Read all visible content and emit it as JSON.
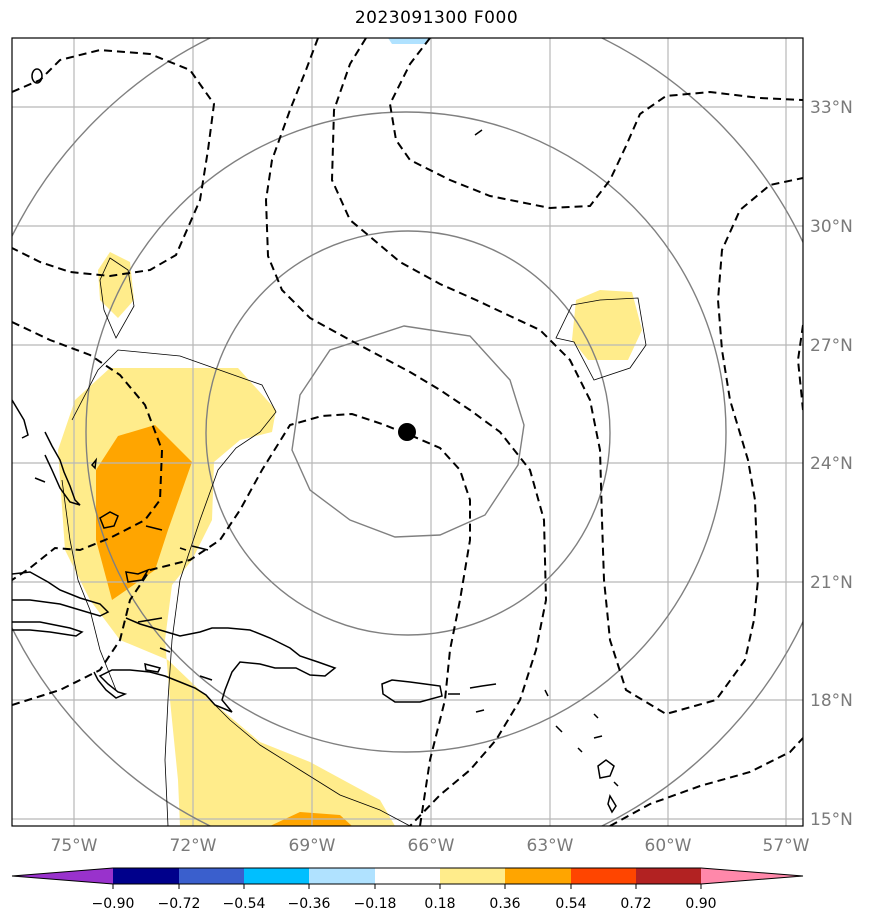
{
  "title": "2023091300 F000",
  "map": {
    "lon_labels": [
      "75°W",
      "72°W",
      "69°W",
      "66°W",
      "63°W",
      "60°W",
      "57°W"
    ],
    "lat_labels": [
      "33°N",
      "30°N",
      "27°N",
      "24°N",
      "21°N",
      "18°N",
      "15°N"
    ],
    "storm_marker": "filled-circle"
  },
  "colorbar": {
    "labels": [
      "−0.90",
      "−0.72",
      "−0.54",
      "−0.36",
      "−0.18",
      "0.18",
      "0.36",
      "0.54",
      "0.72",
      "0.90"
    ],
    "colors": [
      "#9932cc",
      "#00008b",
      "#3a5fcd",
      "#00bfff",
      "#b0e2ff",
      "#ffffff",
      "#ffec8b",
      "#ffa500",
      "#ff4500",
      "#b22222",
      "#ff88aa"
    ]
  }
}
